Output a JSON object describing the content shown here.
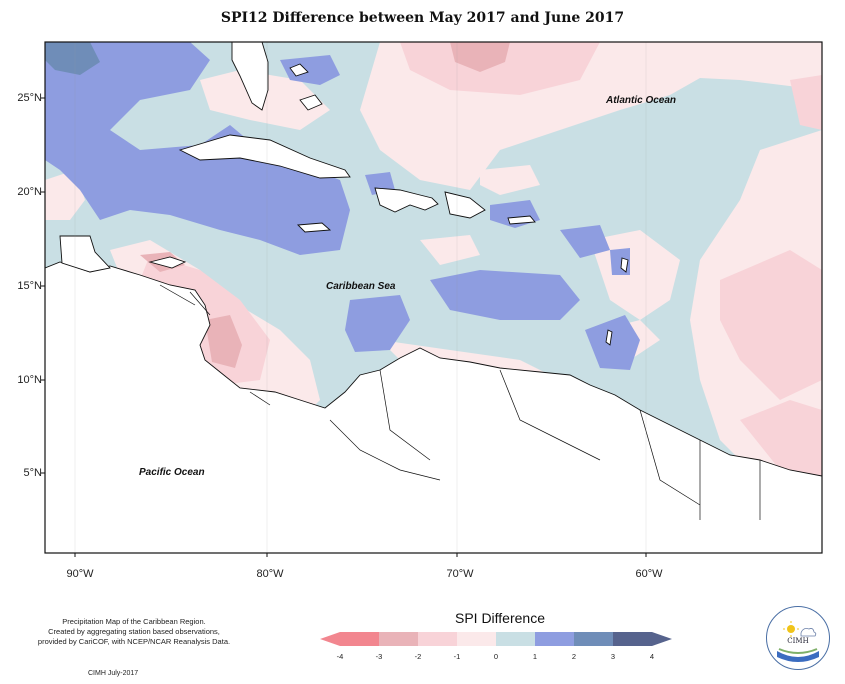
{
  "title": "SPI12 Difference between May 2017 and June 2017",
  "axes": {
    "lat_labels": [
      "25°N",
      "20°N",
      "15°N",
      "10°N",
      "5°N"
    ],
    "lon_labels": [
      "90°W",
      "80°W",
      "70°W",
      "60°W"
    ]
  },
  "places": {
    "atlantic": "Atlantic Ocean",
    "caribbean": "Caribbean Sea",
    "pacific": "Pacific Ocean"
  },
  "credits": {
    "line1": "Precipitation Map of the Caribbean Region.",
    "line2": "Created by aggregating station based observations,",
    "line3": "provided by CariCOF, with NCEP/NCAR Reanalysis Data.",
    "source": "CIMH July-2017"
  },
  "legend": {
    "title": "SPI Difference",
    "ticks": [
      "-4",
      "-3",
      "-2",
      "-1",
      "0",
      "1",
      "2",
      "3",
      "4"
    ],
    "colors": [
      "#f2868f",
      "#e9b3b8",
      "#f8d3d8",
      "#fbe9ea",
      "#c9dfe4",
      "#8e9de0",
      "#6f8db8",
      "#56638d"
    ]
  },
  "logo": {
    "text": "CIMH"
  }
}
